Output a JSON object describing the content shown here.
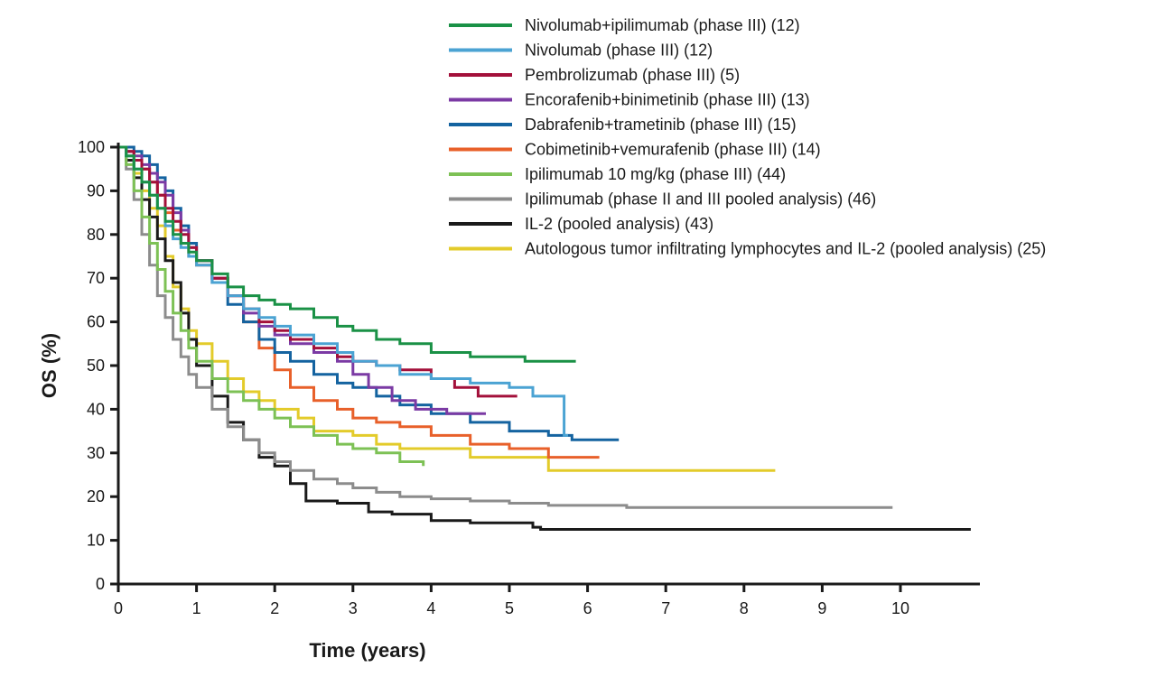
{
  "chart_data": {
    "type": "line",
    "title": "",
    "xlabel": "Time (years)",
    "ylabel": "OS (%)",
    "xlim": [
      0,
      11
    ],
    "ylim": [
      0,
      100
    ],
    "xticks": [
      0,
      1,
      2,
      3,
      4,
      5,
      6,
      7,
      8,
      9,
      10
    ],
    "yticks": [
      0,
      10,
      20,
      30,
      40,
      50,
      60,
      70,
      80,
      90,
      100
    ],
    "grid": false,
    "legend_position": "top-right",
    "step": true,
    "series": [
      {
        "name": "Nivolumab+ipilimumab (phase III) (12)",
        "color": "#1a9146",
        "x": [
          0,
          0.1,
          0.2,
          0.3,
          0.4,
          0.5,
          0.6,
          0.7,
          0.8,
          0.9,
          1.0,
          1.2,
          1.4,
          1.6,
          1.8,
          2.0,
          2.2,
          2.5,
          2.8,
          3.0,
          3.3,
          3.6,
          4.0,
          4.5,
          5.0,
          5.2,
          5.85
        ],
        "y": [
          100,
          98,
          95,
          92,
          89,
          86,
          83,
          80,
          78,
          76,
          74,
          71,
          68,
          66,
          65,
          64,
          63,
          61,
          59,
          58,
          56,
          55,
          53,
          52,
          52,
          51,
          51
        ]
      },
      {
        "name": "Nivolumab (phase III) (12)",
        "color": "#4ba3d3",
        "x": [
          0,
          0.1,
          0.2,
          0.3,
          0.4,
          0.5,
          0.6,
          0.7,
          0.8,
          0.9,
          1.0,
          1.2,
          1.4,
          1.6,
          1.8,
          2.0,
          2.2,
          2.5,
          2.8,
          3.0,
          3.3,
          3.6,
          4.0,
          4.5,
          5.0,
          5.3,
          5.65,
          5.7,
          5.75
        ],
        "y": [
          100,
          98,
          95,
          92,
          89,
          86,
          82,
          79,
          77,
          75,
          73,
          69,
          66,
          63,
          61,
          59,
          57,
          55,
          53,
          51,
          50,
          48,
          47,
          46,
          45,
          43,
          43,
          34,
          34
        ]
      },
      {
        "name": "Pembrolizumab (phase III) (5)",
        "color": "#a3103a",
        "x": [
          0,
          0.1,
          0.2,
          0.3,
          0.4,
          0.5,
          0.6,
          0.7,
          0.8,
          0.9,
          1.0,
          1.2,
          1.4,
          1.6,
          1.8,
          2.0,
          2.2,
          2.5,
          2.8,
          3.0,
          3.3,
          3.6,
          4.0,
          4.3,
          4.6,
          5.1
        ],
        "y": [
          100,
          99,
          97,
          95,
          92,
          89,
          86,
          83,
          80,
          77,
          74,
          70,
          66,
          63,
          60,
          58,
          56,
          54,
          52,
          51,
          50,
          49,
          47,
          45,
          43,
          43
        ]
      },
      {
        "name": "Encorafenib+binimetinib (phase III) (13)",
        "color": "#7b3aa4",
        "x": [
          0,
          0.1,
          0.2,
          0.3,
          0.4,
          0.5,
          0.6,
          0.7,
          0.8,
          0.9,
          1.0,
          1.2,
          1.4,
          1.6,
          1.8,
          2.0,
          2.2,
          2.5,
          2.8,
          3.0,
          3.2,
          3.5,
          3.8,
          4.2,
          4.7
        ],
        "y": [
          100,
          99,
          98,
          96,
          94,
          92,
          89,
          85,
          81,
          77,
          74,
          70,
          66,
          62,
          59,
          57,
          55,
          53,
          51,
          48,
          45,
          42,
          40,
          39,
          39
        ]
      },
      {
        "name": "Dabrafenib+trametinib (phase III) (15)",
        "color": "#1463a0",
        "x": [
          0,
          0.1,
          0.2,
          0.3,
          0.4,
          0.5,
          0.6,
          0.7,
          0.8,
          0.9,
          1.0,
          1.2,
          1.4,
          1.6,
          1.8,
          2.0,
          2.2,
          2.5,
          2.8,
          3.0,
          3.3,
          3.6,
          4.0,
          4.5,
          5.0,
          5.5,
          5.8,
          6.4
        ],
        "y": [
          100,
          100,
          99,
          98,
          96,
          93,
          90,
          86,
          82,
          78,
          74,
          69,
          64,
          60,
          56,
          53,
          51,
          48,
          46,
          45,
          43,
          41,
          39,
          37,
          35,
          34,
          33,
          33
        ]
      },
      {
        "name": "Cobimetinib+vemurafenib (phase III) (14)",
        "color": "#e8602a",
        "x": [
          0,
          0.1,
          0.2,
          0.3,
          0.4,
          0.5,
          0.6,
          0.7,
          0.8,
          0.9,
          1.0,
          1.2,
          1.4,
          1.6,
          1.8,
          2.0,
          2.2,
          2.5,
          2.8,
          3.0,
          3.3,
          3.6,
          4.0,
          4.5,
          5.0,
          5.5,
          6.15
        ],
        "y": [
          100,
          99,
          97,
          95,
          92,
          89,
          85,
          81,
          78,
          75,
          73,
          70,
          66,
          60,
          54,
          49,
          45,
          42,
          40,
          38,
          37,
          36,
          34,
          32,
          31,
          29,
          29
        ]
      },
      {
        "name": "Ipilimumab 10 mg/kg (phase III) (44)",
        "color": "#7dc155",
        "x": [
          0,
          0.1,
          0.2,
          0.3,
          0.4,
          0.5,
          0.6,
          0.7,
          0.8,
          0.9,
          1.0,
          1.2,
          1.4,
          1.6,
          1.8,
          2.0,
          2.2,
          2.5,
          2.8,
          3.0,
          3.3,
          3.6,
          3.9
        ],
        "y": [
          100,
          96,
          90,
          84,
          78,
          72,
          67,
          62,
          58,
          54,
          51,
          47,
          44,
          42,
          40,
          38,
          36,
          34,
          32,
          31,
          30,
          28,
          27
        ]
      },
      {
        "name": "Ipilimumab (phase II and III pooled analysis) (46)",
        "color": "#8c8c8c",
        "x": [
          0,
          0.1,
          0.2,
          0.3,
          0.4,
          0.5,
          0.6,
          0.7,
          0.8,
          0.9,
          1.0,
          1.2,
          1.4,
          1.6,
          1.8,
          2.0,
          2.2,
          2.5,
          2.8,
          3.0,
          3.3,
          3.6,
          4.0,
          4.5,
          5.0,
          5.5,
          6.0,
          6.5,
          7.0,
          8.0,
          9.0,
          9.9
        ],
        "y": [
          100,
          95,
          88,
          80,
          73,
          66,
          61,
          56,
          52,
          48,
          45,
          40,
          36,
          33,
          30,
          28,
          26,
          24,
          23,
          22,
          21,
          20,
          19.5,
          19,
          18.5,
          18,
          18,
          17.5,
          17.5,
          17.5,
          17.5,
          17.5
        ]
      },
      {
        "name": "IL-2 (pooled analysis) (43)",
        "color": "#1a1a1a",
        "x": [
          0,
          0.1,
          0.2,
          0.3,
          0.4,
          0.5,
          0.6,
          0.7,
          0.8,
          0.9,
          1.0,
          1.2,
          1.4,
          1.6,
          1.8,
          2.0,
          2.2,
          2.4,
          2.8,
          3.2,
          3.5,
          4.0,
          4.5,
          5.3,
          5.4,
          10.9
        ],
        "y": [
          100,
          97,
          93,
          88,
          84,
          79,
          74,
          69,
          62,
          56,
          50,
          43,
          37,
          33,
          29,
          27,
          23,
          19,
          18.5,
          16.5,
          16,
          14.5,
          14,
          13,
          12.5,
          12.5
        ]
      },
      {
        "name": "Autologous tumor infiltrating lymphocytes and IL-2 (pooled analysis) (25)",
        "color": "#e3cb2a",
        "x": [
          0,
          0.1,
          0.2,
          0.3,
          0.4,
          0.5,
          0.6,
          0.7,
          0.8,
          0.9,
          1.0,
          1.2,
          1.4,
          1.6,
          1.8,
          2.0,
          2.3,
          2.5,
          2.8,
          3.0,
          3.3,
          3.6,
          4.0,
          4.5,
          5.0,
          5.5,
          6.0,
          8.4
        ],
        "y": [
          100,
          97,
          94,
          90,
          86,
          82,
          75,
          68,
          63,
          58,
          55,
          51,
          47,
          44,
          42,
          40,
          38,
          35,
          35,
          34,
          32,
          31,
          31,
          29,
          29,
          26,
          26,
          26
        ]
      }
    ]
  }
}
